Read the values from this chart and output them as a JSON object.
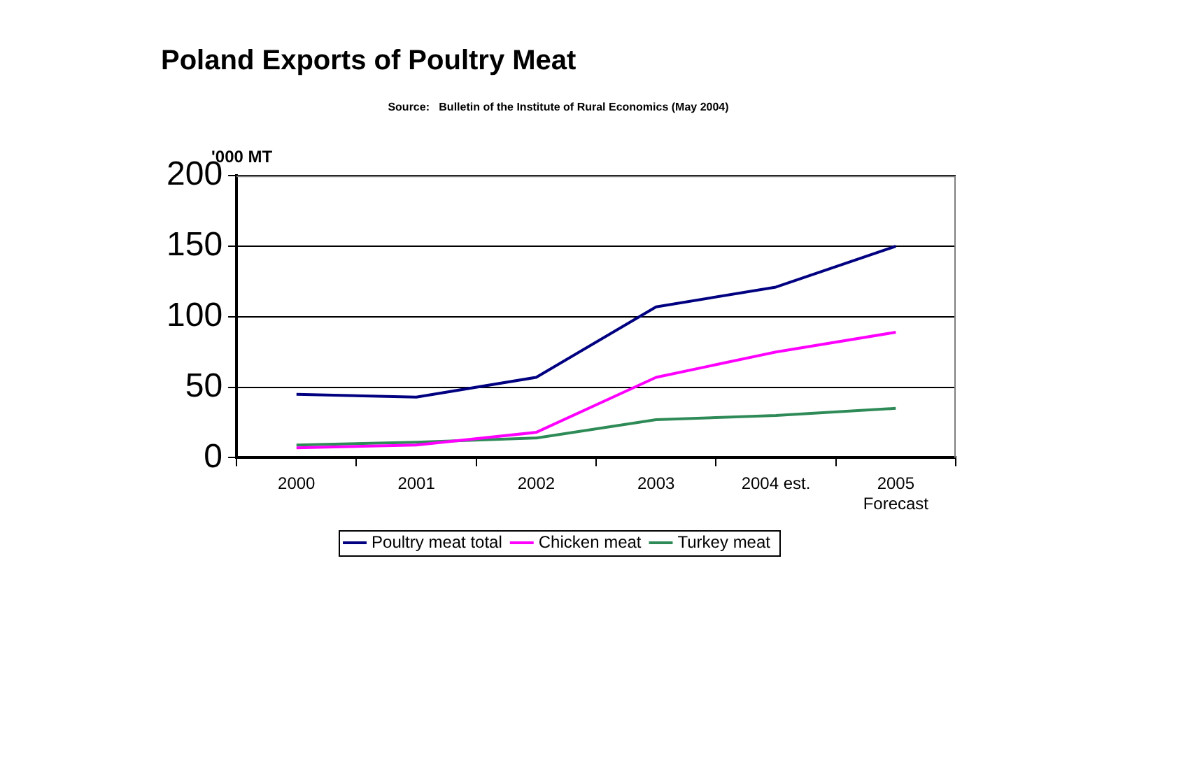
{
  "chart_data": {
    "type": "line",
    "title": "Poland Exports of Poultry Meat",
    "subtitle": "Source:   Bulletin of the Institute of Rural Economics (May 2004)",
    "ylabel": "'000 MT",
    "categories": [
      "2000",
      "2001",
      "2002",
      "2003",
      "2004 est.",
      "2005\nForecast"
    ],
    "series": [
      {
        "name": "Poultry meat total",
        "color": "#000080",
        "values": [
          45,
          43,
          57,
          107,
          121,
          150
        ]
      },
      {
        "name": "Chicken meat",
        "color": "#ff00ff",
        "values": [
          7,
          9,
          18,
          57,
          75,
          89
        ]
      },
      {
        "name": "Turkey meat",
        "color": "#2e8b57",
        "values": [
          9,
          11,
          14,
          27,
          30,
          35
        ]
      }
    ],
    "ylim": [
      0,
      200
    ],
    "yticks": [
      0,
      50,
      100,
      150,
      200
    ],
    "grid": "y",
    "legend": "bottom",
    "marker": "none",
    "line_style": "solid"
  }
}
